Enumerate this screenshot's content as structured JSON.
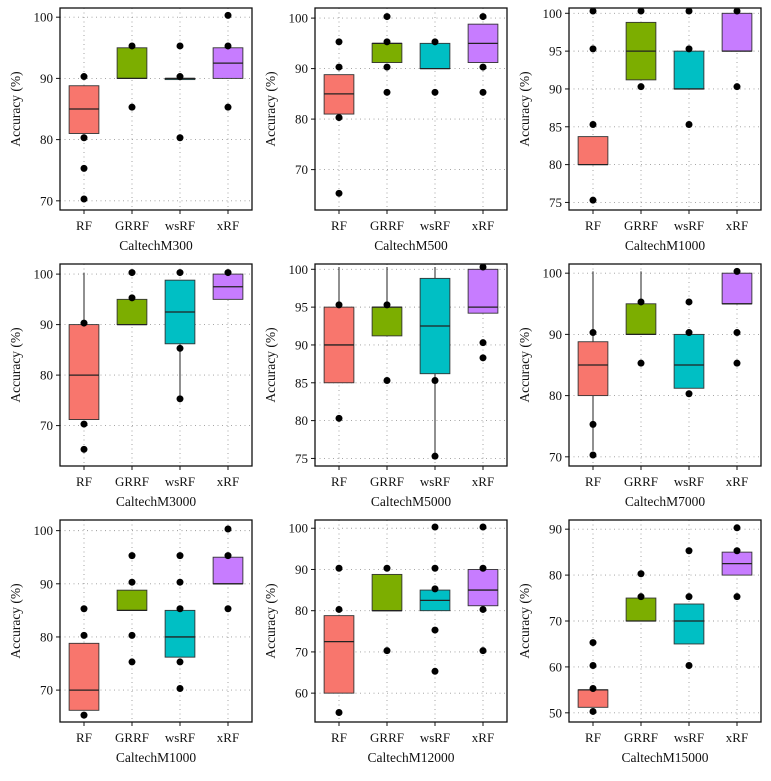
{
  "chart_data": [
    {
      "type": "boxplot",
      "xlabel": "CaltechM300",
      "ylabel": "Accuracy (%)",
      "ylim": [
        68.5,
        101.5
      ],
      "yticks": [
        70,
        80,
        90,
        100
      ],
      "categories": [
        "RF",
        "GRRF",
        "wsRF",
        "xRF"
      ],
      "boxes": [
        {
          "q1": 81,
          "median": 85,
          "q3": 88.8,
          "wlo": 81,
          "whi": 88.8,
          "outliers": [
            90.3,
            80.3,
            75.3,
            70.3
          ]
        },
        {
          "q1": 90,
          "median": 90,
          "q3": 95,
          "wlo": 90,
          "whi": 95,
          "outliers": [
            95.3,
            85.3
          ]
        },
        {
          "q1": 90,
          "median": 90,
          "q3": 90,
          "wlo": 90,
          "whi": 90,
          "outliers": [
            95.3,
            90.3,
            80.3
          ]
        },
        {
          "q1": 90,
          "median": 92.5,
          "q3": 95,
          "wlo": 90,
          "whi": 95,
          "outliers": [
            100.3,
            95.3,
            85.3
          ]
        }
      ]
    },
    {
      "type": "boxplot",
      "xlabel": "CaltechM500",
      "ylabel": "Accuracy (%)",
      "ylim": [
        62,
        102
      ],
      "yticks": [
        70,
        80,
        90,
        100
      ],
      "categories": [
        "RF",
        "GRRF",
        "wsRF",
        "xRF"
      ],
      "boxes": [
        {
          "q1": 81,
          "median": 85,
          "q3": 88.8,
          "wlo": 81,
          "whi": 88.8,
          "outliers": [
            95.3,
            90.3,
            80.3,
            65.3
          ]
        },
        {
          "q1": 91.2,
          "median": 95,
          "q3": 95,
          "wlo": 91.2,
          "whi": 95,
          "outliers": [
            100.3,
            95.3,
            90.3,
            85.3
          ]
        },
        {
          "q1": 90,
          "median": 90,
          "q3": 95,
          "wlo": 90,
          "whi": 95,
          "outliers": [
            95.3,
            85.3
          ]
        },
        {
          "q1": 91.2,
          "median": 95,
          "q3": 98.8,
          "wlo": 91.2,
          "whi": 98.8,
          "outliers": [
            100.3,
            90.3,
            85.3
          ]
        }
      ]
    },
    {
      "type": "boxplot",
      "xlabel": "CaltechM1000",
      "ylabel": "Accuracy (%)",
      "ylim": [
        74,
        100.7
      ],
      "yticks": [
        75,
        80,
        85,
        90,
        95,
        100
      ],
      "categories": [
        "RF",
        "GRRF",
        "wsRF",
        "xRF"
      ],
      "boxes": [
        {
          "q1": 80,
          "median": 80,
          "q3": 83.7,
          "wlo": 80,
          "whi": 83.7,
          "outliers": [
            100.3,
            95.3,
            85.3,
            75.3
          ]
        },
        {
          "q1": 91.2,
          "median": 95,
          "q3": 98.8,
          "wlo": 91.2,
          "whi": 98.8,
          "outliers": [
            100.3,
            90.3
          ]
        },
        {
          "q1": 90,
          "median": 90,
          "q3": 95,
          "wlo": 90,
          "whi": 95,
          "outliers": [
            100.3,
            95.3,
            85.3
          ]
        },
        {
          "q1": 95,
          "median": 95,
          "q3": 100,
          "wlo": 95,
          "whi": 100,
          "outliers": [
            100.3,
            90.3
          ]
        }
      ]
    },
    {
      "type": "boxplot",
      "xlabel": "CaltechM3000",
      "ylabel": "Accuracy (%)",
      "ylim": [
        62,
        102
      ],
      "yticks": [
        70,
        80,
        90,
        100
      ],
      "categories": [
        "RF",
        "GRRF",
        "wsRF",
        "xRF"
      ],
      "boxes": [
        {
          "q1": 71.2,
          "median": 80,
          "q3": 90,
          "wlo": 71.2,
          "whi": 100.3,
          "outliers": [
            90.3,
            70.3,
            65.3
          ]
        },
        {
          "q1": 90,
          "median": 90,
          "q3": 95,
          "wlo": 90,
          "whi": 95,
          "outliers": [
            100.3,
            95.3
          ]
        },
        {
          "q1": 86.2,
          "median": 92.5,
          "q3": 98.8,
          "wlo": 75.3,
          "whi": 98.8,
          "outliers": [
            100.3,
            85.3,
            75.3
          ]
        },
        {
          "q1": 95,
          "median": 97.5,
          "q3": 100,
          "wlo": 95,
          "whi": 100,
          "outliers": [
            100.3
          ]
        }
      ]
    },
    {
      "type": "boxplot",
      "xlabel": "CaltechM5000",
      "ylabel": "Accuracy (%)",
      "ylim": [
        74,
        100.7
      ],
      "yticks": [
        75,
        80,
        85,
        90,
        95,
        100
      ],
      "categories": [
        "RF",
        "GRRF",
        "wsRF",
        "xRF"
      ],
      "boxes": [
        {
          "q1": 85,
          "median": 90,
          "q3": 95,
          "wlo": 85,
          "whi": 100.3,
          "outliers": [
            95.3,
            80.3
          ]
        },
        {
          "q1": 91.2,
          "median": 95,
          "q3": 95,
          "wlo": 91.2,
          "whi": 100.3,
          "outliers": [
            95.3,
            85.3
          ]
        },
        {
          "q1": 86.2,
          "median": 92.5,
          "q3": 98.8,
          "wlo": 75.3,
          "whi": 100.3,
          "outliers": [
            85.3,
            75.3
          ]
        },
        {
          "q1": 94.2,
          "median": 95,
          "q3": 100,
          "wlo": 94.2,
          "whi": 100,
          "outliers": [
            100.3,
            90.3,
            88.3
          ]
        }
      ]
    },
    {
      "type": "boxplot",
      "xlabel": "CaltechM7000",
      "ylabel": "Accuracy (%)",
      "ylim": [
        68.5,
        101.5
      ],
      "yticks": [
        70,
        80,
        90,
        100
      ],
      "categories": [
        "RF",
        "GRRF",
        "wsRF",
        "xRF"
      ],
      "boxes": [
        {
          "q1": 80,
          "median": 85,
          "q3": 88.8,
          "wlo": 71,
          "whi": 100.3,
          "outliers": [
            90.3,
            75.3,
            70.3
          ]
        },
        {
          "q1": 90,
          "median": 90,
          "q3": 95,
          "wlo": 90,
          "whi": 100.3,
          "outliers": [
            95.3,
            85.3
          ]
        },
        {
          "q1": 81.2,
          "median": 85,
          "q3": 90,
          "wlo": 81.2,
          "whi": 90,
          "outliers": [
            95.3,
            90.3,
            80.3
          ]
        },
        {
          "q1": 95,
          "median": 95,
          "q3": 100,
          "wlo": 95,
          "whi": 100,
          "outliers": [
            100.3,
            90.3,
            85.3
          ]
        }
      ]
    },
    {
      "type": "boxplot",
      "xlabel": "CaltechM1000",
      "ylabel": "Accuracy (%)",
      "ylim": [
        64,
        102
      ],
      "yticks": [
        70,
        80,
        90,
        100
      ],
      "categories": [
        "RF",
        "GRRF",
        "wsRF",
        "xRF"
      ],
      "boxes": [
        {
          "q1": 66.2,
          "median": 70,
          "q3": 78.8,
          "wlo": 66.2,
          "whi": 78.8,
          "outliers": [
            85.3,
            80.3,
            65.3
          ]
        },
        {
          "q1": 85,
          "median": 85,
          "q3": 88.8,
          "wlo": 85,
          "whi": 88.8,
          "outliers": [
            95.3,
            90.3,
            80.3,
            75.3
          ]
        },
        {
          "q1": 76.2,
          "median": 80,
          "q3": 85,
          "wlo": 76.2,
          "whi": 85,
          "outliers": [
            95.3,
            90.3,
            85.3,
            75.3,
            70.3
          ]
        },
        {
          "q1": 90,
          "median": 90,
          "q3": 95,
          "wlo": 90,
          "whi": 95,
          "outliers": [
            100.3,
            95.3,
            85.3
          ]
        }
      ]
    },
    {
      "type": "boxplot",
      "xlabel": "CaltechM12000",
      "ylabel": "Accuracy (%)",
      "ylim": [
        53,
        102
      ],
      "yticks": [
        60,
        70,
        80,
        90,
        100
      ],
      "categories": [
        "RF",
        "GRRF",
        "wsRF",
        "xRF"
      ],
      "boxes": [
        {
          "q1": 60,
          "median": 72.5,
          "q3": 78.8,
          "wlo": 60,
          "whi": 78.8,
          "outliers": [
            90.3,
            80.3,
            55.3
          ]
        },
        {
          "q1": 80,
          "median": 80,
          "q3": 88.8,
          "wlo": 80,
          "whi": 88.8,
          "outliers": [
            90.3,
            70.3
          ]
        },
        {
          "q1": 80,
          "median": 82.5,
          "q3": 85,
          "wlo": 80,
          "whi": 85,
          "outliers": [
            100.3,
            90.3,
            85.3,
            75.3,
            65.3
          ]
        },
        {
          "q1": 81.2,
          "median": 85,
          "q3": 90,
          "wlo": 81.2,
          "whi": 90,
          "outliers": [
            100.3,
            90.3,
            80.3,
            70.3
          ]
        }
      ]
    },
    {
      "type": "boxplot",
      "xlabel": "CaltechM15000",
      "ylabel": "Accuracy (%)",
      "ylim": [
        48,
        92
      ],
      "yticks": [
        50,
        60,
        70,
        80,
        90
      ],
      "categories": [
        "RF",
        "GRRF",
        "wsRF",
        "xRF"
      ],
      "boxes": [
        {
          "q1": 51.2,
          "median": 55,
          "q3": 55,
          "wlo": 51.2,
          "whi": 55,
          "outliers": [
            65.3,
            60.3,
            55.3,
            50.3
          ]
        },
        {
          "q1": 70,
          "median": 70,
          "q3": 75,
          "wlo": 70,
          "whi": 75,
          "outliers": [
            80.3,
            75.3
          ]
        },
        {
          "q1": 65,
          "median": 70,
          "q3": 73.7,
          "wlo": 65,
          "whi": 73.7,
          "outliers": [
            85.3,
            75.3,
            60.3
          ]
        },
        {
          "q1": 80,
          "median": 82.5,
          "q3": 85,
          "wlo": 80,
          "whi": 85,
          "outliers": [
            90.3,
            85.3,
            75.3
          ]
        }
      ]
    }
  ],
  "colors": {
    "RF": "#f8766d",
    "GRRF": "#7cae00",
    "wsRF": "#00bfc4",
    "xRF": "#c77cff",
    "frame": "#111111",
    "grid": "#9a9a9a"
  }
}
